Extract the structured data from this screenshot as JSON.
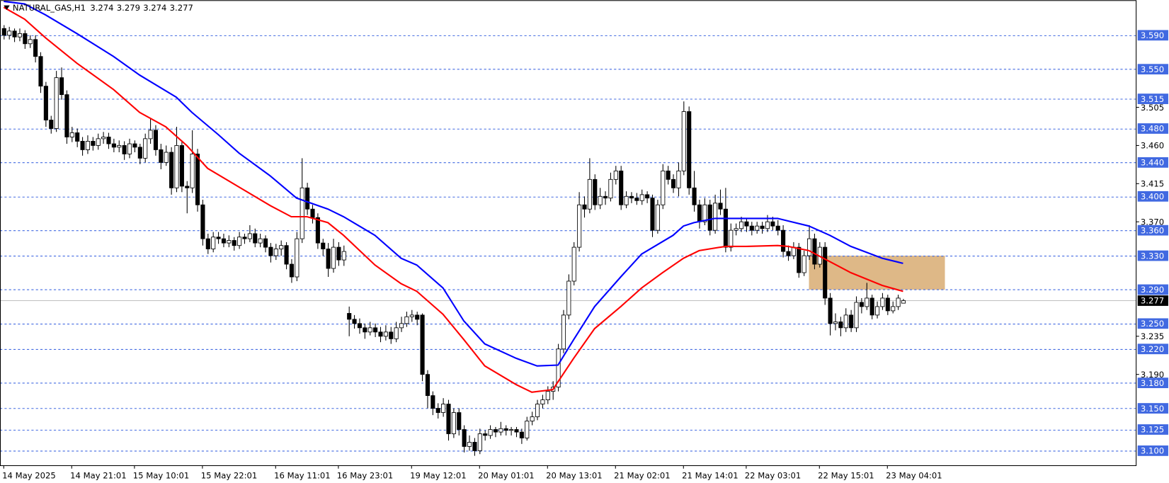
{
  "chart_data": {
    "type": "candlestick",
    "symbol": "NATURAL_GAS,H1",
    "ylim": [
      3.0824,
      3.6314
    ],
    "yticks": [
      3.505,
      {
        "value": 3.46,
        "label": "3.460"
      },
      3.415,
      {
        "value": 3.37,
        "label": "3.370"
      },
      3.235,
      {
        "value": 3.19,
        "label": "3.190"
      }
    ],
    "levels": [
      {
        "value": 3.59,
        "label": "3.590"
      },
      {
        "value": 3.55,
        "label": "3.550"
      },
      3.515,
      {
        "value": 3.48,
        "label": "3.480"
      },
      {
        "value": 3.44,
        "label": "3.440"
      },
      {
        "value": 3.4,
        "label": "3.400"
      },
      {
        "value": 3.36,
        "label": "3.360"
      },
      {
        "value": 3.33,
        "label": "3.330"
      },
      {
        "value": 3.29,
        "label": "3.290"
      },
      {
        "value": 3.25,
        "label": "3.250"
      },
      {
        "value": 3.22,
        "label": "3.220"
      },
      {
        "value": 3.18,
        "label": "3.180"
      },
      {
        "value": 3.15,
        "label": "3.150"
      },
      3.125,
      {
        "value": 3.1,
        "label": "3.100"
      }
    ],
    "level_color": "#4169e1",
    "zone": {
      "x": [
        154,
        180
      ],
      "top": 3.33,
      "bottom": 3.29,
      "color": "#deb887"
    },
    "categories": [
      "14 May 2025",
      null,
      null,
      null,
      null,
      null,
      null,
      null,
      null,
      null,
      null,
      null,
      null,
      "14 May 21:01",
      null,
      null,
      null,
      null,
      null,
      null,
      null,
      null,
      null,
      null,
      null,
      "15 May 10:01",
      null,
      null,
      null,
      null,
      null,
      null,
      null,
      null,
      null,
      null,
      null,
      null,
      "15 May 22:01",
      null,
      null,
      null,
      null,
      null,
      null,
      null,
      null,
      null,
      null,
      null,
      null,
      null,
      "16 May 11:01",
      null,
      null,
      null,
      null,
      null,
      null,
      null,
      null,
      null,
      null,
      null,
      "16 May 23:01",
      null,
      null,
      null,
      null,
      null,
      null,
      null,
      null,
      null,
      null,
      null,
      null,
      null,
      "19 May 12:01",
      null,
      null,
      null,
      null,
      null,
      null,
      null,
      null,
      null,
      null,
      null,
      null,
      "20 May 01:01",
      null,
      null,
      null,
      null,
      null,
      null,
      null,
      null,
      null,
      null,
      null,
      null,
      "20 May 13:01",
      null,
      null,
      null,
      null,
      null,
      null,
      null,
      null,
      null,
      null,
      null,
      null,
      "21 May 02:01",
      null,
      null,
      null,
      null,
      null,
      null,
      null,
      null,
      null,
      null,
      null,
      null,
      "21 May 14:01",
      null,
      null,
      null,
      null,
      null,
      null,
      null,
      null,
      null,
      null,
      null,
      "22 May 03:01",
      null,
      null,
      null,
      null,
      null,
      null,
      null,
      null,
      null,
      null,
      null,
      null,
      null,
      "22 May 15:01",
      null,
      null,
      null,
      null,
      null,
      null,
      null,
      null,
      null,
      null,
      null,
      null,
      "23 May 04:01",
      null,
      null,
      null
    ],
    "ohlc": [
      [
        3.598,
        3.602,
        3.585,
        3.59
      ],
      [
        3.59,
        3.6,
        3.585,
        3.595
      ],
      [
        3.595,
        3.598,
        3.582,
        3.588
      ],
      [
        3.588,
        3.598,
        3.583,
        3.592
      ],
      [
        3.592,
        3.596,
        3.574,
        3.58
      ],
      [
        3.58,
        3.59,
        3.575,
        3.585
      ],
      [
        3.585,
        3.59,
        3.558,
        3.565
      ],
      [
        3.565,
        3.57,
        3.522,
        3.53
      ],
      [
        3.53,
        3.535,
        3.482,
        3.49
      ],
      [
        3.49,
        3.495,
        3.474,
        3.48
      ],
      [
        3.48,
        3.548,
        3.476,
        3.54
      ],
      [
        3.54,
        3.552,
        3.514,
        3.52
      ],
      [
        3.52,
        3.525,
        3.462,
        3.47
      ],
      [
        3.47,
        3.482,
        3.464,
        3.475
      ],
      [
        3.475,
        3.48,
        3.458,
        3.465
      ],
      [
        3.465,
        3.47,
        3.448,
        3.455
      ],
      [
        3.455,
        3.472,
        3.45,
        3.465
      ],
      [
        3.465,
        3.47,
        3.454,
        3.46
      ],
      [
        3.46,
        3.474,
        3.455,
        3.468
      ],
      [
        3.468,
        3.476,
        3.462,
        3.47
      ],
      [
        3.47,
        3.475,
        3.456,
        3.462
      ],
      [
        3.462,
        3.468,
        3.452,
        3.458
      ],
      [
        3.458,
        3.466,
        3.452,
        3.46
      ],
      [
        3.46,
        3.465,
        3.443,
        3.45
      ],
      [
        3.45,
        3.468,
        3.445,
        3.462
      ],
      [
        3.462,
        3.466,
        3.452,
        3.458
      ],
      [
        3.458,
        3.462,
        3.438,
        3.445
      ],
      [
        3.445,
        3.474,
        3.44,
        3.468
      ],
      [
        3.468,
        3.492,
        3.462,
        3.478
      ],
      [
        3.478,
        3.484,
        3.448,
        3.455
      ],
      [
        3.455,
        3.462,
        3.432,
        3.44
      ],
      [
        3.44,
        3.46,
        3.436,
        3.452
      ],
      [
        3.452,
        3.458,
        3.402,
        3.41
      ],
      [
        3.41,
        3.482,
        3.405,
        3.46
      ],
      [
        3.46,
        3.466,
        3.405,
        3.412
      ],
      [
        3.412,
        3.418,
        3.38,
        3.41
      ],
      [
        3.41,
        3.478,
        3.404,
        3.45
      ],
      [
        3.45,
        3.456,
        3.382,
        3.39
      ],
      [
        3.39,
        3.396,
        3.342,
        3.35
      ],
      [
        3.35,
        3.356,
        3.332,
        3.338
      ],
      [
        3.338,
        3.358,
        3.334,
        3.352
      ],
      [
        3.352,
        3.358,
        3.344,
        3.35
      ],
      [
        3.35,
        3.356,
        3.34,
        3.345
      ],
      [
        3.345,
        3.354,
        3.34,
        3.348
      ],
      [
        3.348,
        3.352,
        3.336,
        3.342
      ],
      [
        3.342,
        3.358,
        3.338,
        3.352
      ],
      [
        3.352,
        3.356,
        3.344,
        3.35
      ],
      [
        3.35,
        3.366,
        3.346,
        3.356
      ],
      [
        3.356,
        3.362,
        3.34,
        3.345
      ],
      [
        3.345,
        3.356,
        3.34,
        3.35
      ],
      [
        3.35,
        3.354,
        3.334,
        3.34
      ],
      [
        3.34,
        3.345,
        3.322,
        3.33
      ],
      [
        3.33,
        3.344,
        3.325,
        3.338
      ],
      [
        3.338,
        3.348,
        3.33,
        3.342
      ],
      [
        3.342,
        3.346,
        3.314,
        3.32
      ],
      [
        3.32,
        3.326,
        3.298,
        3.305
      ],
      [
        3.305,
        3.358,
        3.3,
        3.35
      ],
      [
        3.35,
        3.445,
        3.345,
        3.41
      ],
      [
        3.41,
        3.416,
        3.378,
        3.385
      ],
      [
        3.385,
        3.39,
        3.368,
        3.375
      ],
      [
        3.375,
        3.38,
        3.338,
        3.345
      ],
      [
        3.345,
        3.35,
        3.33,
        3.338
      ],
      [
        3.338,
        3.345,
        3.305,
        3.315
      ],
      [
        3.315,
        3.35,
        3.31,
        3.34
      ],
      [
        3.34,
        3.346,
        3.318,
        3.325
      ],
      [
        3.325,
        3.342,
        3.318,
        3.335
      ],
      [
        3.262,
        3.27,
        3.235,
        3.255
      ],
      [
        3.255,
        3.26,
        3.244,
        3.25
      ],
      [
        3.25,
        3.256,
        3.238,
        3.245
      ],
      [
        3.245,
        3.25,
        3.232,
        3.24
      ],
      [
        3.24,
        3.252,
        3.236,
        3.245
      ],
      [
        3.245,
        3.25,
        3.234,
        3.24
      ],
      [
        3.24,
        3.246,
        3.228,
        3.235
      ],
      [
        3.235,
        3.248,
        3.23,
        3.24
      ],
      [
        3.24,
        3.246,
        3.226,
        3.232
      ],
      [
        3.232,
        3.252,
        3.228,
        3.245
      ],
      [
        3.245,
        3.258,
        3.24,
        3.25
      ],
      [
        3.25,
        3.264,
        3.246,
        3.258
      ],
      [
        3.258,
        3.266,
        3.252,
        3.26
      ],
      [
        3.26,
        3.264,
        3.248,
        3.255
      ],
      [
        3.26,
        3.262,
        3.182,
        3.19
      ],
      [
        3.19,
        3.195,
        3.15,
        3.165
      ],
      [
        3.165,
        3.17,
        3.142,
        3.15
      ],
      [
        3.15,
        3.156,
        3.138,
        3.145
      ],
      [
        3.145,
        3.162,
        3.14,
        3.155
      ],
      [
        3.155,
        3.16,
        3.112,
        3.12
      ],
      [
        3.12,
        3.15,
        3.115,
        3.145
      ],
      [
        3.145,
        3.15,
        3.118,
        3.125
      ],
      [
        3.125,
        3.13,
        3.098,
        3.105
      ],
      [
        3.105,
        3.118,
        3.1,
        3.11
      ],
      [
        3.11,
        3.115,
        3.094,
        3.1
      ],
      [
        3.1,
        3.126,
        3.096,
        3.12
      ],
      [
        3.12,
        3.124,
        3.112,
        3.118
      ],
      [
        3.118,
        3.13,
        3.114,
        3.125
      ],
      [
        3.125,
        3.128,
        3.116,
        3.122
      ],
      [
        3.122,
        3.134,
        3.118,
        3.126
      ],
      [
        3.126,
        3.13,
        3.118,
        3.124
      ],
      [
        3.124,
        3.128,
        3.118,
        3.125
      ],
      [
        3.125,
        3.128,
        3.116,
        3.122
      ],
      [
        3.122,
        3.126,
        3.108,
        3.115
      ],
      [
        3.115,
        3.14,
        3.112,
        3.135
      ],
      [
        3.135,
        3.146,
        3.13,
        3.14
      ],
      [
        3.14,
        3.16,
        3.136,
        3.155
      ],
      [
        3.155,
        3.166,
        3.15,
        3.16
      ],
      [
        3.16,
        3.176,
        3.155,
        3.17
      ],
      [
        3.17,
        3.182,
        3.16,
        3.175
      ],
      [
        3.175,
        3.226,
        3.17,
        3.22
      ],
      [
        3.22,
        3.266,
        3.215,
        3.26
      ],
      [
        3.26,
        3.308,
        3.255,
        3.3
      ],
      [
        3.3,
        3.346,
        3.295,
        3.34
      ],
      [
        3.34,
        3.405,
        3.335,
        3.39
      ],
      [
        3.39,
        3.4,
        3.375,
        3.385
      ],
      [
        3.385,
        3.445,
        3.38,
        3.42
      ],
      [
        3.42,
        3.426,
        3.384,
        3.39
      ],
      [
        3.39,
        3.41,
        3.385,
        3.4
      ],
      [
        3.4,
        3.406,
        3.39,
        3.398
      ],
      [
        3.398,
        3.428,
        3.394,
        3.42
      ],
      [
        3.42,
        3.436,
        3.414,
        3.43
      ],
      [
        3.43,
        3.436,
        3.384,
        3.39
      ],
      [
        3.39,
        3.406,
        3.386,
        3.4
      ],
      [
        3.4,
        3.405,
        3.392,
        3.398
      ],
      [
        3.398,
        3.404,
        3.39,
        3.395
      ],
      [
        3.395,
        3.408,
        3.39,
        3.402
      ],
      [
        3.402,
        3.406,
        3.392,
        3.398
      ],
      [
        3.398,
        3.402,
        3.352,
        3.36
      ],
      [
        3.36,
        3.396,
        3.356,
        3.39
      ],
      [
        3.39,
        3.438,
        3.385,
        3.43
      ],
      [
        3.43,
        3.436,
        3.414,
        3.42
      ],
      [
        3.42,
        3.426,
        3.404,
        3.41
      ],
      [
        3.41,
        3.44,
        3.4,
        3.43
      ],
      [
        3.43,
        3.512,
        3.425,
        3.5
      ],
      [
        3.5,
        3.506,
        3.402,
        3.41
      ],
      [
        3.41,
        3.43,
        3.382,
        3.39
      ],
      [
        3.39,
        3.396,
        3.362,
        3.37
      ],
      [
        3.37,
        3.398,
        3.366,
        3.39
      ],
      [
        3.39,
        3.396,
        3.354,
        3.36
      ],
      [
        3.36,
        3.402,
        3.356,
        3.392
      ],
      [
        3.392,
        3.408,
        3.378,
        3.385
      ],
      [
        3.385,
        3.41,
        3.334,
        3.34
      ],
      [
        3.34,
        3.368,
        3.335,
        3.36
      ],
      [
        3.36,
        3.368,
        3.354,
        3.362
      ],
      [
        3.362,
        3.376,
        3.358,
        3.37
      ],
      [
        3.37,
        3.374,
        3.358,
        3.365
      ],
      [
        3.365,
        3.37,
        3.354,
        3.36
      ],
      [
        3.36,
        3.37,
        3.356,
        3.365
      ],
      [
        3.365,
        3.37,
        3.356,
        3.362
      ],
      [
        3.362,
        3.378,
        3.358,
        3.37
      ],
      [
        3.37,
        3.376,
        3.36,
        3.365
      ],
      [
        3.365,
        3.372,
        3.354,
        3.36
      ],
      [
        3.36,
        3.366,
        3.328,
        3.335
      ],
      [
        3.335,
        3.342,
        3.324,
        3.33
      ],
      [
        3.33,
        3.346,
        3.326,
        3.34
      ],
      [
        3.34,
        3.345,
        3.304,
        3.31
      ],
      [
        3.31,
        3.336,
        3.306,
        3.33
      ],
      [
        3.33,
        3.366,
        3.325,
        3.35
      ],
      [
        3.35,
        3.356,
        3.314,
        3.32
      ],
      [
        3.32,
        3.346,
        3.316,
        3.34
      ],
      [
        3.34,
        3.346,
        3.272,
        3.28
      ],
      [
        3.28,
        3.286,
        3.236,
        3.25
      ],
      [
        3.25,
        3.262,
        3.242,
        3.252
      ],
      [
        3.252,
        3.258,
        3.235,
        3.245
      ],
      [
        3.245,
        3.268,
        3.24,
        3.26
      ],
      [
        3.26,
        3.266,
        3.24,
        3.245
      ],
      [
        3.245,
        3.282,
        3.24,
        3.275
      ],
      [
        3.275,
        3.28,
        3.262,
        3.27
      ],
      [
        3.27,
        3.298,
        3.266,
        3.28
      ],
      [
        3.28,
        3.284,
        3.255,
        3.26
      ],
      [
        3.26,
        3.276,
        3.256,
        3.27
      ],
      [
        3.27,
        3.286,
        3.266,
        3.28
      ],
      [
        3.28,
        3.284,
        3.26,
        3.265
      ],
      [
        3.265,
        3.276,
        3.262,
        3.27
      ],
      [
        3.27,
        3.284,
        3.266,
        3.28
      ],
      [
        3.274,
        3.279,
        3.274,
        3.277
      ]
    ],
    "series": [
      {
        "color": "#0000ff",
        "x": [
          0,
          4,
          8,
          14,
          21,
          26,
          33,
          36,
          41,
          45,
          51,
          56,
          62,
          65,
          71,
          76,
          79,
          84,
          88,
          92,
          98,
          102,
          106,
          109,
          113,
          118,
          122,
          128,
          130,
          132,
          136,
          142,
          148,
          150,
          154,
          158,
          162,
          168,
          172
        ],
        "values": [
          3.63,
          3.627,
          3.614,
          3.592,
          3.565,
          3.543,
          3.517,
          3.499,
          3.473,
          3.451,
          3.424,
          3.398,
          3.385,
          3.376,
          3.354,
          3.327,
          3.319,
          3.292,
          3.253,
          3.226,
          3.209,
          3.2,
          3.201,
          3.231,
          3.27,
          3.305,
          3.332,
          3.354,
          3.365,
          3.369,
          3.374,
          3.374,
          3.374,
          3.371,
          3.365,
          3.354,
          3.341,
          3.327,
          3.321
        ]
      },
      {
        "color": "#ff0000",
        "x": [
          0,
          4,
          8,
          14,
          21,
          26,
          31,
          35,
          39,
          45,
          51,
          55,
          58,
          62,
          65,
          71,
          76,
          79,
          84,
          88,
          92,
          98,
          101,
          105,
          109,
          113,
          118,
          122,
          126,
          130,
          133,
          138,
          142,
          148,
          150,
          154,
          158,
          162,
          168,
          172
        ],
        "values": [
          3.623,
          3.609,
          3.587,
          3.557,
          3.526,
          3.499,
          3.482,
          3.46,
          3.433,
          3.411,
          3.389,
          3.376,
          3.376,
          3.369,
          3.354,
          3.319,
          3.297,
          3.288,
          3.261,
          3.231,
          3.2,
          3.178,
          3.169,
          3.172,
          3.209,
          3.244,
          3.27,
          3.292,
          3.31,
          3.327,
          3.336,
          3.341,
          3.341,
          3.342,
          3.341,
          3.336,
          3.323,
          3.31,
          3.295,
          3.288
        ]
      }
    ]
  }
}
